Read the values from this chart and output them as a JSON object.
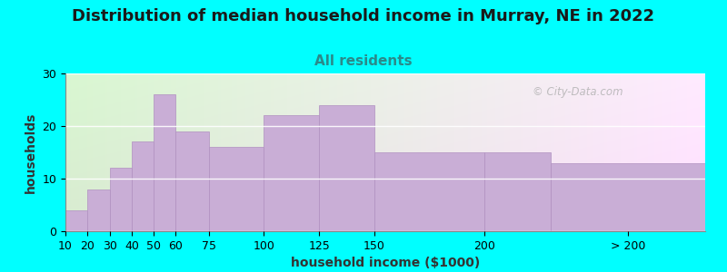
{
  "title": "Distribution of median household income in Murray, NE in 2022",
  "subtitle": "All residents",
  "xlabel": "household income ($1000)",
  "ylabel": "households",
  "background_color": "#00FFFF",
  "bar_color": "#c9aed6",
  "bar_edge_color": "#b090c0",
  "values": [
    4,
    8,
    12,
    17,
    26,
    19,
    16,
    22,
    24,
    15,
    15,
    13
  ],
  "bar_lefts": [
    10,
    20,
    30,
    40,
    50,
    60,
    75,
    100,
    125,
    150,
    200,
    230
  ],
  "bar_widths": [
    10,
    10,
    10,
    10,
    10,
    15,
    25,
    25,
    25,
    50,
    30,
    70
  ],
  "xlim": [
    10,
    300
  ],
  "ylim": [
    0,
    30
  ],
  "yticks": [
    0,
    10,
    20,
    30
  ],
  "xtick_positions": [
    10,
    20,
    30,
    40,
    50,
    60,
    75,
    100,
    125,
    150,
    200,
    265
  ],
  "xtick_labels": [
    "10",
    "20",
    "30",
    "40",
    "50",
    "60",
    "75",
    "100",
    "125",
    "150",
    "200",
    "> 200"
  ],
  "title_fontsize": 13,
  "subtitle_fontsize": 11,
  "axis_label_fontsize": 10,
  "tick_fontsize": 9,
  "watermark_text": "© City-Data.com"
}
